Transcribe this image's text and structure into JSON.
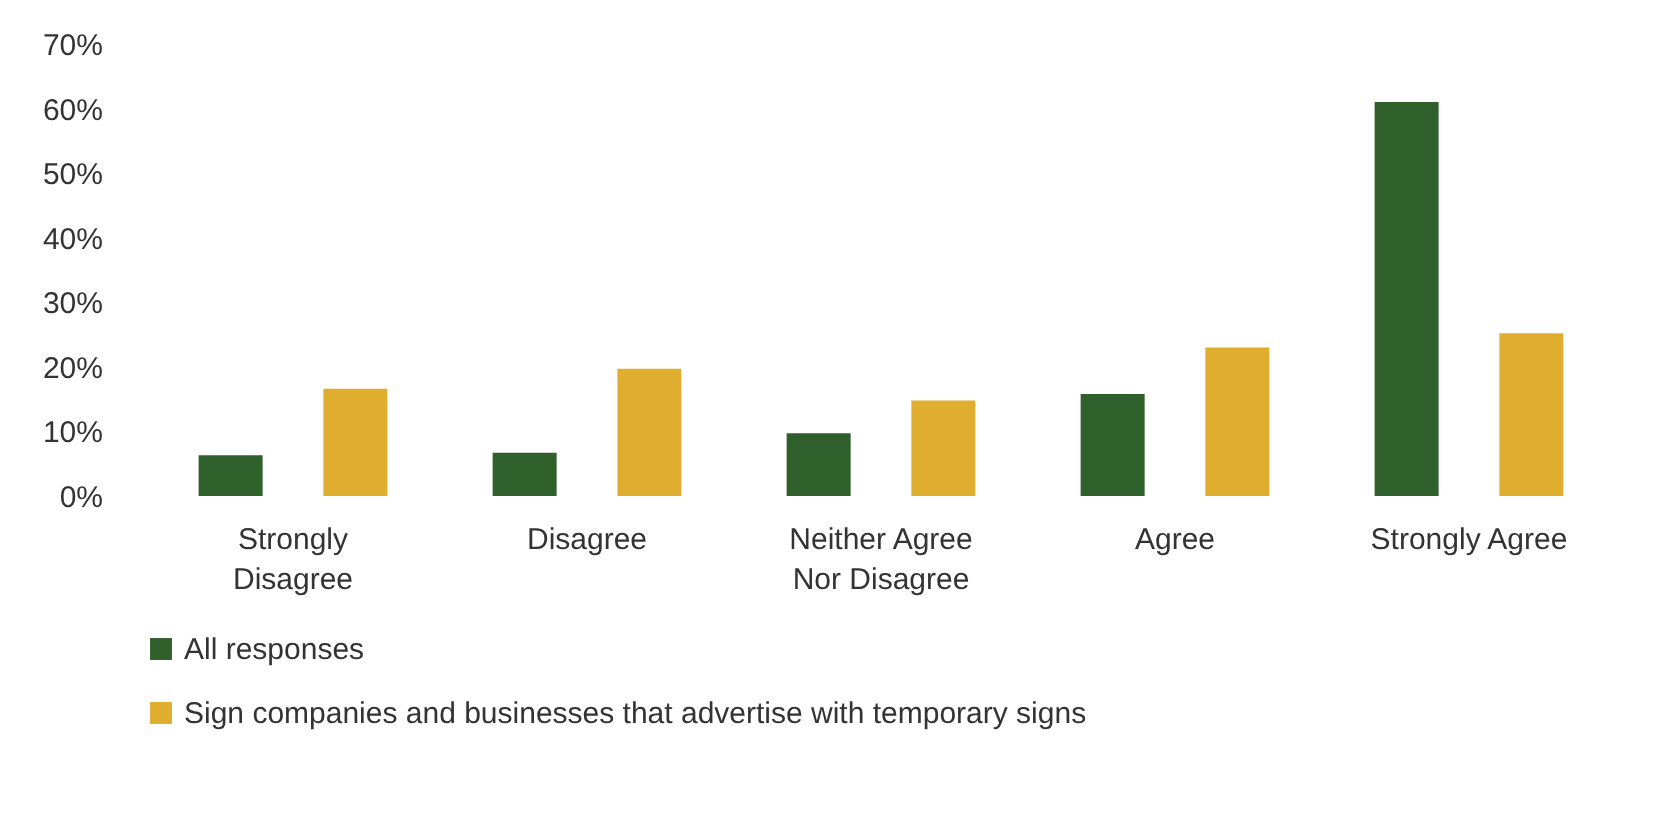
{
  "chart_data": {
    "type": "bar",
    "categories": [
      "Strongly Disagree",
      "Disagree",
      "Neither Agree Nor Disagree",
      "Agree",
      "Strongly Agree"
    ],
    "series": [
      {
        "name": "All responses",
        "color": "#2f5f2b",
        "values": [
          6.3,
          6.7,
          9.7,
          15.8,
          61
        ]
      },
      {
        "name": "Sign companies and businesses that advertise with temporary signs",
        "color": "#e0ae2e",
        "values": [
          16.6,
          19.7,
          14.8,
          23,
          25.2
        ]
      }
    ],
    "ylim": [
      0,
      70
    ],
    "yticks": [
      {
        "value": 0,
        "label": "0%"
      },
      {
        "value": 10,
        "label": "10%"
      },
      {
        "value": 20,
        "label": "20%"
      },
      {
        "value": 30,
        "label": "30%"
      },
      {
        "value": 40,
        "label": "40%"
      },
      {
        "value": 50,
        "label": "50%"
      },
      {
        "value": 60,
        "label": "60%"
      },
      {
        "value": 70,
        "label": "70%"
      }
    ],
    "grid": false,
    "legend": "bottom"
  }
}
